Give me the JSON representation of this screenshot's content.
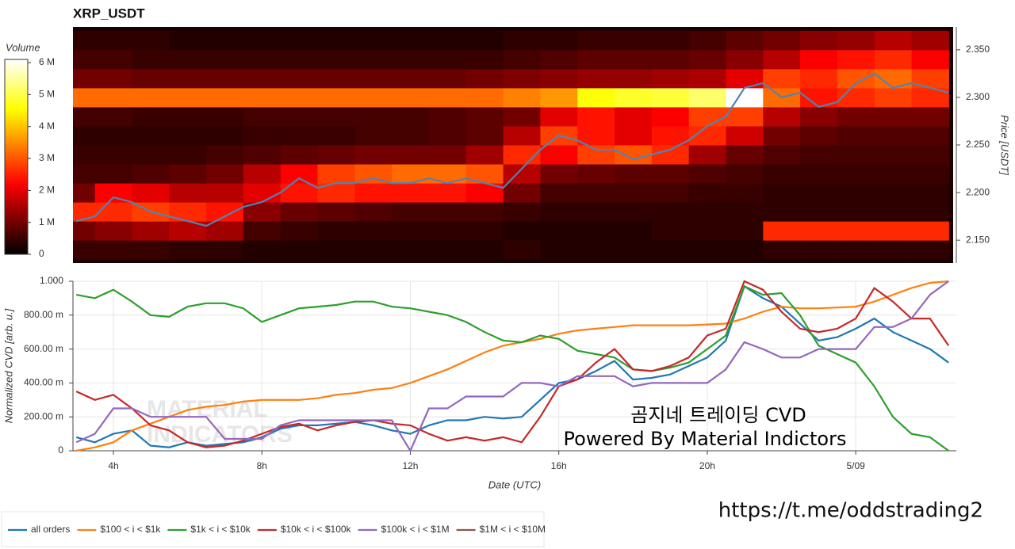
{
  "title": "XRP_USDT",
  "footer_link": "https://t.me/oddstrading2",
  "chart_data": [
    {
      "type": "heatmap",
      "colormap": "hot",
      "colorbar": {
        "title": "Volume",
        "zlim": [
          0,
          6.1
        ],
        "ticks": [
          {
            "value": 0,
            "label": "0"
          },
          {
            "value": 1,
            "label": "1 M"
          },
          {
            "value": 2,
            "label": "2 M"
          },
          {
            "value": 3,
            "label": "3 M"
          },
          {
            "value": 4,
            "label": "4 M"
          },
          {
            "value": 5,
            "label": "5 M"
          },
          {
            "value": 6,
            "label": "6 M"
          }
        ]
      },
      "y_label": "Price [USDT]",
      "xlim": [
        2.91,
        26.62
      ],
      "ylim": [
        2.126,
        2.374
      ],
      "yticks": [
        {
          "value": 2.15,
          "label": "2.150"
        },
        {
          "value": 2.2,
          "label": "2.200"
        },
        {
          "value": 2.25,
          "label": "2.250"
        },
        {
          "value": 2.3,
          "label": "2.300"
        },
        {
          "value": 2.35,
          "label": "2.350"
        }
      ],
      "x": [
        3,
        4,
        5,
        6,
        7,
        8,
        9,
        10,
        11,
        12,
        13,
        14,
        15,
        16,
        17,
        18,
        19,
        20,
        21,
        22,
        23,
        24,
        25,
        26
      ],
      "y": [
        2.14,
        2.16,
        2.18,
        2.2,
        2.22,
        2.24,
        2.26,
        2.28,
        2.3,
        2.32,
        2.34,
        2.36
      ],
      "z": [
        [
          0.5,
          0.5,
          0.5,
          0.4,
          0.4,
          0.3,
          0.3,
          0.3,
          0.3,
          0.3,
          0.3,
          0.3,
          0.4,
          0.3,
          0.3,
          0.3,
          0.3,
          0.3,
          0.3,
          0.4,
          0.4,
          0.4,
          0.4,
          0.4
        ],
        [
          1.0,
          1.2,
          1.4,
          1.6,
          1.4,
          0.6,
          0.5,
          0.4,
          0.4,
          0.4,
          0.4,
          0.4,
          0.3,
          0.3,
          0.3,
          0.3,
          0.4,
          0.4,
          0.4,
          2.6,
          2.6,
          2.6,
          2.6,
          2.6
        ],
        [
          2.6,
          2.6,
          2.8,
          2.6,
          2.4,
          1.2,
          0.9,
          0.8,
          0.7,
          0.6,
          0.6,
          0.6,
          0.5,
          0.4,
          0.4,
          0.4,
          0.4,
          0.4,
          0.4,
          0.4,
          0.4,
          0.4,
          0.4,
          0.4
        ],
        [
          1.0,
          2.2,
          2.0,
          1.6,
          1.6,
          2.0,
          2.4,
          2.6,
          2.4,
          2.4,
          2.4,
          2.2,
          1.0,
          0.6,
          0.6,
          0.6,
          0.6,
          0.5,
          0.5,
          0.4,
          0.4,
          0.4,
          0.4,
          0.4
        ],
        [
          0.6,
          0.6,
          0.7,
          0.8,
          1.0,
          1.6,
          2.2,
          2.8,
          3.0,
          3.2,
          3.2,
          3.0,
          1.6,
          1.0,
          0.9,
          0.8,
          0.8,
          0.7,
          0.6,
          0.5,
          0.5,
          0.5,
          0.5,
          0.5
        ],
        [
          0.5,
          0.5,
          0.5,
          0.5,
          0.6,
          0.7,
          0.8,
          0.9,
          1.0,
          1.0,
          1.0,
          1.4,
          2.6,
          2.2,
          2.8,
          3.0,
          2.6,
          1.4,
          0.9,
          0.7,
          0.6,
          0.6,
          0.6,
          0.6
        ],
        [
          0.4,
          0.4,
          0.4,
          0.4,
          0.4,
          0.5,
          0.5,
          0.5,
          0.6,
          0.6,
          0.7,
          0.8,
          1.6,
          2.8,
          2.4,
          2.0,
          2.4,
          2.6,
          1.8,
          1.0,
          0.8,
          0.7,
          0.7,
          0.7
        ],
        [
          0.6,
          0.6,
          0.5,
          0.5,
          0.5,
          0.6,
          0.6,
          0.6,
          0.6,
          0.6,
          0.7,
          0.8,
          1.0,
          2.0,
          2.4,
          2.0,
          2.2,
          2.8,
          2.8,
          1.6,
          1.2,
          1.0,
          1.0,
          1.0
        ],
        [
          3.2,
          3.2,
          3.2,
          3.2,
          3.2,
          3.2,
          3.2,
          3.2,
          3.2,
          3.2,
          3.2,
          3.2,
          3.4,
          3.6,
          4.6,
          4.8,
          4.9,
          5.2,
          6.2,
          3.2,
          2.4,
          2.6,
          2.8,
          2.6
        ],
        [
          1.0,
          1.0,
          0.9,
          0.9,
          0.9,
          0.9,
          0.9,
          0.9,
          0.9,
          0.9,
          0.9,
          1.0,
          1.1,
          1.2,
          1.3,
          1.3,
          1.4,
          1.5,
          2.0,
          2.8,
          2.6,
          3.0,
          3.2,
          2.8
        ],
        [
          0.6,
          0.6,
          0.5,
          0.5,
          0.5,
          0.5,
          0.5,
          0.5,
          0.5,
          0.5,
          0.5,
          0.5,
          0.6,
          0.7,
          0.8,
          0.8,
          0.8,
          0.9,
          1.2,
          1.6,
          2.2,
          2.4,
          2.6,
          2.2
        ],
        [
          0.4,
          0.4,
          0.4,
          0.3,
          0.3,
          0.3,
          0.3,
          0.3,
          0.3,
          0.3,
          0.3,
          0.3,
          0.4,
          0.4,
          0.5,
          0.5,
          0.5,
          0.6,
          0.8,
          1.0,
          1.2,
          1.3,
          1.6,
          1.4
        ]
      ],
      "price": {
        "color": "#4f84b4",
        "x": [
          3,
          3.5,
          4,
          4.5,
          5,
          5.5,
          6,
          6.5,
          7,
          7.5,
          8,
          8.5,
          9,
          9.5,
          10,
          10.5,
          11,
          11.5,
          12,
          12.5,
          13,
          13.5,
          14,
          14.5,
          15,
          15.5,
          16,
          16.5,
          17,
          17.5,
          18,
          18.5,
          19,
          19.5,
          20,
          20.5,
          21,
          21.5,
          22,
          22.5,
          23,
          23.5,
          24,
          24.5,
          25,
          25.5,
          26,
          26.5
        ],
        "values": [
          2.17,
          2.175,
          2.195,
          2.19,
          2.18,
          2.175,
          2.17,
          2.165,
          2.175,
          2.185,
          2.19,
          2.2,
          2.215,
          2.205,
          2.21,
          2.21,
          2.215,
          2.21,
          2.21,
          2.215,
          2.21,
          2.215,
          2.21,
          2.205,
          2.225,
          2.245,
          2.26,
          2.255,
          2.245,
          2.245,
          2.235,
          2.24,
          2.245,
          2.255,
          2.27,
          2.28,
          2.31,
          2.315,
          2.3,
          2.305,
          2.29,
          2.295,
          2.315,
          2.325,
          2.31,
          2.315,
          2.31,
          2.305
        ]
      }
    },
    {
      "type": "line",
      "x_label": "Date (UTC)",
      "y_label": "Normalized CVD [arb. u.]",
      "grid": true,
      "xlim": [
        2.91,
        26.71
      ],
      "ylim": [
        0,
        1
      ],
      "xticks": [
        {
          "value": 4,
          "label": "4h"
        },
        {
          "value": 8,
          "label": "8h"
        },
        {
          "value": 12,
          "label": "12h"
        },
        {
          "value": 16,
          "label": "16h"
        },
        {
          "value": 20,
          "label": "20h"
        },
        {
          "value": 24,
          "label": "5/09"
        }
      ],
      "yticks": [
        0,
        {
          "value": 0.2,
          "label": "200.00 m"
        },
        {
          "value": 0.4,
          "label": "400.00 m"
        },
        {
          "value": 0.6,
          "label": "600.00 m"
        },
        {
          "value": 0.8,
          "label": "800.00 m"
        },
        {
          "value": 1,
          "label": "1.000"
        }
      ],
      "annotations": [
        "곰지네 트레이딩 CVD",
        "Powered By Material Indictors"
      ],
      "watermark": [
        "MATERIAL",
        "INDICATORS"
      ],
      "x": [
        3,
        3.5,
        4,
        4.5,
        5,
        5.5,
        6,
        6.5,
        7,
        7.5,
        8,
        8.5,
        9,
        9.5,
        10,
        10.5,
        11,
        11.5,
        12,
        12.5,
        13,
        13.5,
        14,
        14.5,
        15,
        15.5,
        16,
        16.5,
        17,
        17.5,
        18,
        18.5,
        19,
        19.5,
        20,
        20.5,
        21,
        21.5,
        22,
        22.5,
        23,
        23.5,
        24,
        24.5,
        25,
        25.5,
        26,
        26.5
      ],
      "series": [
        {
          "name": "all orders",
          "color": "#1f77b4",
          "values": [
            0.08,
            0.05,
            0.1,
            0.12,
            0.03,
            0.02,
            0.05,
            0.03,
            0.04,
            0.05,
            0.08,
            0.13,
            0.15,
            0.15,
            0.16,
            0.17,
            0.15,
            0.12,
            0.1,
            0.15,
            0.18,
            0.18,
            0.2,
            0.19,
            0.2,
            0.3,
            0.4,
            0.42,
            0.47,
            0.53,
            0.42,
            0.43,
            0.45,
            0.5,
            0.55,
            0.65,
            0.97,
            0.9,
            0.85,
            0.75,
            0.65,
            0.67,
            0.72,
            0.78,
            0.7,
            0.65,
            0.6,
            0.52
          ]
        },
        {
          "name": "$100 < i < $1k",
          "color": "#ff7f0e",
          "values": [
            0,
            0.02,
            0.05,
            0.12,
            0.16,
            0.2,
            0.24,
            0.26,
            0.27,
            0.29,
            0.3,
            0.3,
            0.3,
            0.31,
            0.33,
            0.34,
            0.36,
            0.37,
            0.4,
            0.44,
            0.48,
            0.53,
            0.58,
            0.62,
            0.64,
            0.66,
            0.69,
            0.71,
            0.72,
            0.73,
            0.74,
            0.74,
            0.74,
            0.74,
            0.745,
            0.75,
            0.78,
            0.82,
            0.85,
            0.84,
            0.84,
            0.845,
            0.85,
            0.88,
            0.92,
            0.96,
            0.99,
            1
          ]
        },
        {
          "name": "$1k < i < $10k",
          "color": "#2ca02c",
          "values": [
            0.92,
            0.9,
            0.95,
            0.88,
            0.8,
            0.79,
            0.85,
            0.87,
            0.87,
            0.84,
            0.76,
            0.8,
            0.84,
            0.85,
            0.86,
            0.88,
            0.88,
            0.85,
            0.84,
            0.82,
            0.8,
            0.76,
            0.7,
            0.65,
            0.64,
            0.68,
            0.66,
            0.59,
            0.57,
            0.55,
            0.48,
            0.47,
            0.49,
            0.52,
            0.6,
            0.68,
            0.97,
            0.92,
            0.93,
            0.8,
            0.62,
            0.57,
            0.52,
            0.38,
            0.2,
            0.1,
            0.08,
            0
          ]
        },
        {
          "name": "$10k < i < $100k",
          "color": "#c62828",
          "values": [
            0.35,
            0.3,
            0.33,
            0.25,
            0.15,
            0.12,
            0.05,
            0.02,
            0.03,
            0.06,
            0.1,
            0.14,
            0.16,
            0.12,
            0.15,
            0.17,
            0.18,
            0.16,
            0.15,
            0.1,
            0.06,
            0.08,
            0.06,
            0.08,
            0.05,
            0.2,
            0.38,
            0.42,
            0.52,
            0.6,
            0.48,
            0.47,
            0.5,
            0.55,
            0.68,
            0.72,
            1,
            0.95,
            0.82,
            0.72,
            0.7,
            0.72,
            0.78,
            0.96,
            0.88,
            0.78,
            0.78,
            0.62
          ]
        },
        {
          "name": "$100k < i < $1M",
          "color": "#9467bd",
          "values": [
            0.05,
            0.1,
            0.25,
            0.25,
            0.2,
            0.2,
            0.2,
            0.2,
            0.07,
            0.07,
            0.07,
            0.15,
            0.18,
            0.18,
            0.18,
            0.18,
            0.18,
            0.18,
            0,
            0.25,
            0.25,
            0.32,
            0.32,
            0.32,
            0.4,
            0.4,
            0.38,
            0.44,
            0.44,
            0.44,
            0.38,
            0.4,
            0.4,
            0.4,
            0.4,
            0.48,
            0.64,
            0.6,
            0.55,
            0.55,
            0.6,
            0.6,
            0.6,
            0.73,
            0.73,
            0.78,
            0.92,
            1
          ]
        },
        {
          "name": "$1M < i < $10M",
          "color": "#8c564b",
          "values": [
            null,
            null,
            null,
            null,
            null,
            null,
            null,
            null,
            null,
            null,
            null,
            null,
            null,
            null,
            null,
            null,
            null,
            null,
            null,
            null,
            null,
            null,
            null,
            null,
            null,
            null,
            null,
            null,
            null,
            null,
            null,
            null,
            null,
            null,
            null,
            null,
            null,
            null,
            null,
            null,
            null,
            null,
            null,
            null,
            null,
            null,
            null,
            null
          ]
        }
      ]
    }
  ]
}
